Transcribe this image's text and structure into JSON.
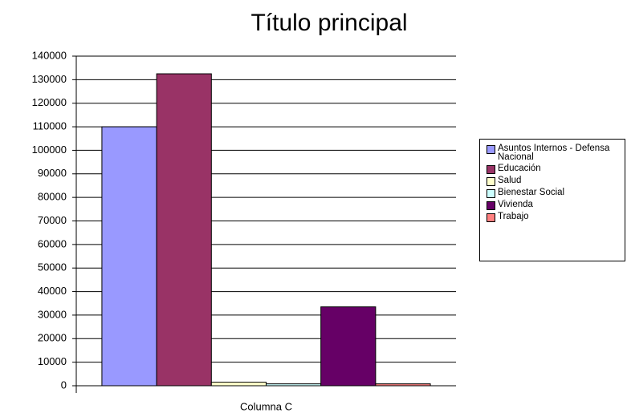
{
  "chart_data": {
    "type": "bar",
    "title": "Título principal",
    "categories": [
      "Columna C"
    ],
    "series": [
      {
        "name": "Asuntos Internos - Defensa Nacional",
        "color": "#9999ff",
        "values": [
          110000
        ]
      },
      {
        "name": "Educación",
        "color": "#993366",
        "values": [
          132500
        ]
      },
      {
        "name": "Salud",
        "color": "#ffffcc",
        "values": [
          1500
        ]
      },
      {
        "name": "Bienestar Social",
        "color": "#ccffff",
        "values": [
          800
        ]
      },
      {
        "name": "Vivienda",
        "color": "#660066",
        "values": [
          33500
        ]
      },
      {
        "name": "Trabajo",
        "color": "#ff8080",
        "values": [
          800
        ]
      }
    ],
    "ylim": [
      0,
      140000
    ],
    "yticks": [
      0,
      10000,
      20000,
      30000,
      40000,
      50000,
      60000,
      70000,
      80000,
      90000,
      100000,
      110000,
      120000,
      130000,
      140000
    ],
    "grid": true,
    "legend": "right"
  }
}
